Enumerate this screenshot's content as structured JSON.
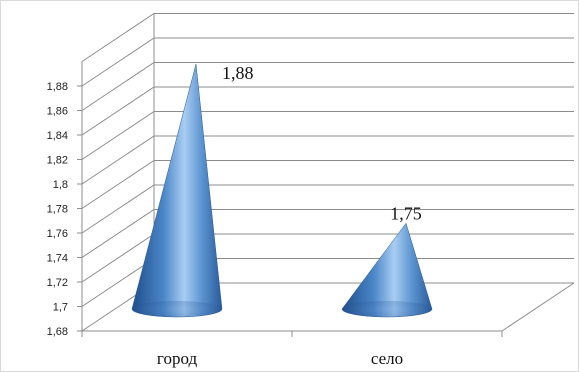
{
  "chart_data": {
    "type": "bar",
    "shape": "cone-3d",
    "categories": [
      "город",
      "село"
    ],
    "values": [
      1.88,
      1.75
    ],
    "data_labels": [
      "1,88",
      "1,75"
    ],
    "yticks": [
      "1,68",
      "1,7",
      "1,72",
      "1,74",
      "1,76",
      "1,78",
      "1,8",
      "1,82",
      "1,84",
      "1,86",
      "1,88"
    ],
    "ylim": [
      1.68,
      1.9
    ],
    "ystep": 0.02,
    "grid": true,
    "legend": "none",
    "title": "",
    "xlabel": "",
    "ylabel": "",
    "color": "#4f81bd"
  }
}
